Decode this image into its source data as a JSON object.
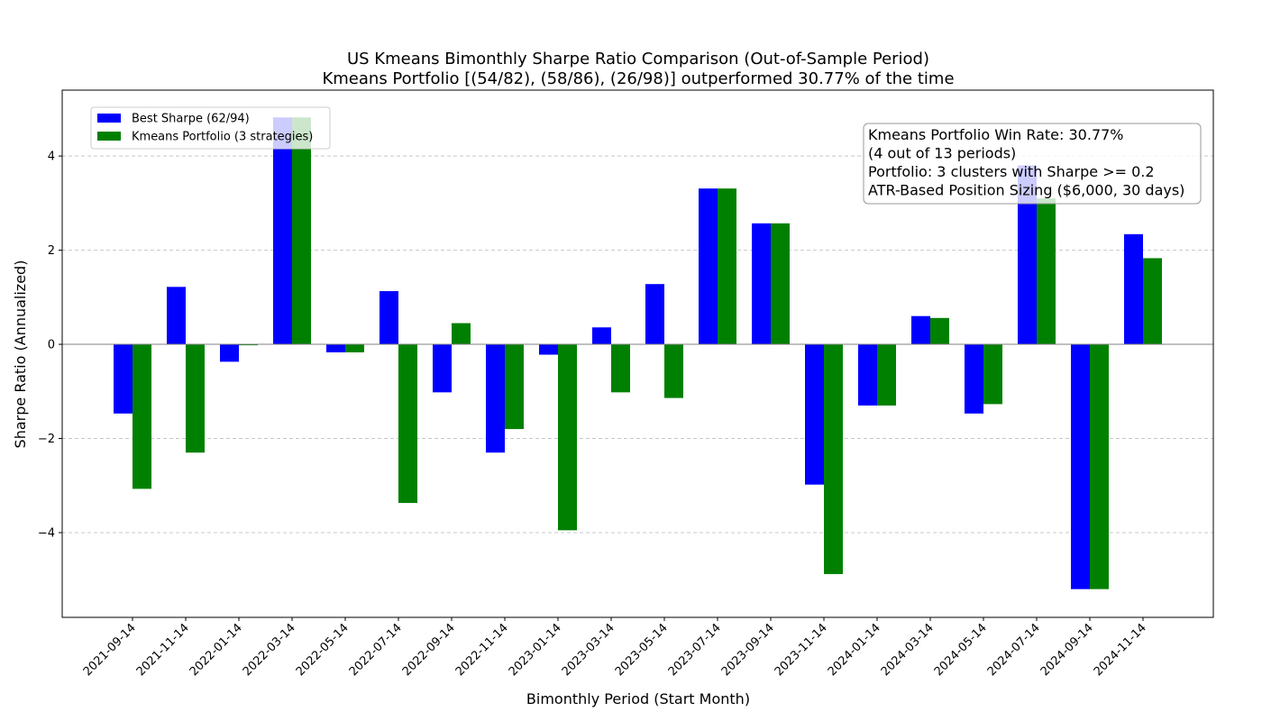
{
  "chart_data": {
    "type": "bar",
    "title": "US Kmeans Bimonthly Sharpe Ratio Comparison (Out-of-Sample Period)",
    "subtitle": "Kmeans Portfolio [(54/82), (58/86), (26/98)] outperformed 30.77% of the time",
    "xlabel": "Bimonthly Period (Start Month)",
    "ylabel": "Sharpe Ratio (Annualized)",
    "ylim": [
      -5.8,
      5.4
    ],
    "yticks": [
      -4,
      -2,
      0,
      2,
      4
    ],
    "ytick_labels": [
      "−4",
      "−2",
      "0",
      "2",
      "4"
    ],
    "grid": "horizontal dashed",
    "legend_position": "top-left",
    "categories": [
      "2021-09-14",
      "2021-11-14",
      "2022-01-14",
      "2022-03-14",
      "2022-05-14",
      "2022-07-14",
      "2022-09-14",
      "2022-11-14",
      "2023-01-14",
      "2023-03-14",
      "2023-05-14",
      "2023-07-14",
      "2023-09-14",
      "2023-11-14",
      "2024-01-14",
      "2024-03-14",
      "2024-05-14",
      "2024-07-14",
      "2024-09-14",
      "2024-11-14"
    ],
    "series": [
      {
        "name": "Best Sharpe (62/94)",
        "color": "#0000ff",
        "values": [
          -1.47,
          1.22,
          -0.37,
          4.82,
          -0.17,
          1.13,
          -1.02,
          -2.3,
          -0.22,
          0.36,
          1.28,
          3.31,
          2.57,
          -2.98,
          -1.3,
          0.6,
          -1.47,
          3.8,
          -5.2,
          2.34
        ]
      },
      {
        "name": "Kmeans Portfolio (3 strategies)",
        "color": "#008000",
        "values": [
          -3.07,
          -2.3,
          -0.02,
          4.82,
          -0.17,
          -3.37,
          0.45,
          -1.8,
          -3.95,
          -1.02,
          -1.14,
          3.31,
          2.57,
          -4.88,
          -1.3,
          0.56,
          -1.27,
          3.1,
          -5.2,
          1.83
        ]
      }
    ],
    "annotation": [
      "Kmeans Portfolio Win Rate: 30.77%",
      "(4 out of 13 periods)",
      "Portfolio: 3 clusters with Sharpe >= 0.2",
      "ATR-Based Position Sizing ($6,000, 30 days)"
    ]
  }
}
